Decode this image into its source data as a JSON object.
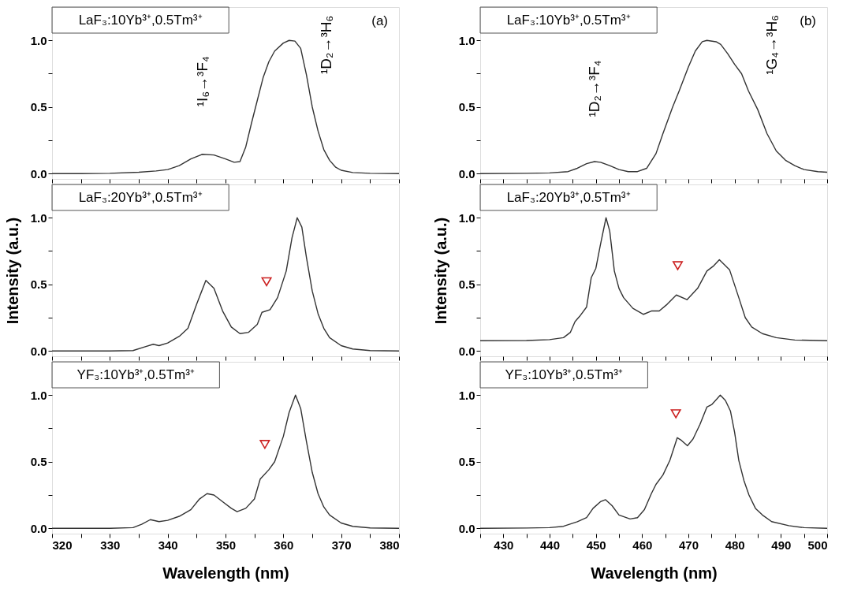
{
  "chart_data": [
    {
      "type": "line",
      "title": "LaF₃:10Yb³⁺,0.5Tm³⁺",
      "tick_labels": "y",
      "xlim": [
        320,
        380
      ],
      "ylim": [
        -0.04,
        1.25
      ],
      "xticks": [
        320,
        {
          "value": 325,
          "label": null
        },
        330,
        {
          "value": 335,
          "label": null
        },
        340,
        {
          "value": 345,
          "label": null
        },
        350,
        {
          "value": 355,
          "label": null
        },
        360,
        {
          "value": 365,
          "label": null
        },
        370,
        {
          "value": 375,
          "label": null
        },
        380
      ],
      "yticks": [
        {
          "value": 0,
          "label": "0.0"
        },
        {
          "value": 0.25,
          "label": null
        },
        {
          "value": 0.5,
          "label": "0.5"
        },
        {
          "value": 0.75,
          "label": null
        },
        {
          "value": 1,
          "label": "1.0"
        }
      ],
      "annotations": [
        "(a)",
        "¹I₆→³F₄",
        "¹D₂→³H₆"
      ],
      "series": [
        {
          "color": "#333333",
          "x": [
            320,
            325,
            330,
            335,
            338,
            340,
            342,
            344,
            346,
            348,
            350,
            351.5,
            352.5,
            353.5,
            354.5,
            355.5,
            356.5,
            357.5,
            358.5,
            360,
            361,
            362,
            363,
            364,
            365,
            366,
            367,
            368,
            369,
            370,
            372,
            375,
            380
          ],
          "values": [
            0,
            0,
            0.002,
            0.01,
            0.02,
            0.03,
            0.06,
            0.11,
            0.145,
            0.14,
            0.11,
            0.085,
            0.09,
            0.2,
            0.38,
            0.55,
            0.72,
            0.84,
            0.92,
            0.98,
            1.0,
            0.995,
            0.94,
            0.74,
            0.5,
            0.32,
            0.18,
            0.1,
            0.05,
            0.025,
            0.008,
            0.002,
            0
          ]
        }
      ]
    },
    {
      "type": "line",
      "title": "LaF₃:10Yb³⁺,0.5Tm³⁺",
      "tick_labels": "y",
      "xlim": [
        425,
        500
      ],
      "ylim": [
        -0.04,
        1.25
      ],
      "xticks": [
        {
          "value": 425,
          "label": null
        },
        430,
        {
          "value": 435,
          "label": null
        },
        440,
        {
          "value": 445,
          "label": null
        },
        450,
        {
          "value": 455,
          "label": null
        },
        460,
        {
          "value": 465,
          "label": null
        },
        470,
        {
          "value": 475,
          "label": null
        },
        480,
        {
          "value": 485,
          "label": null
        },
        490,
        {
          "value": 495,
          "label": null
        },
        500
      ],
      "yticks": [
        {
          "value": 0,
          "label": "0.0"
        },
        {
          "value": 0.25,
          "label": null
        },
        {
          "value": 0.5,
          "label": "0.5"
        },
        {
          "value": 0.75,
          "label": null
        },
        {
          "value": 1,
          "label": "1.0"
        }
      ],
      "annotations": [
        "(b)",
        "¹D₂→³F₄",
        "¹G₄→³H₆"
      ],
      "series": [
        {
          "color": "#333333",
          "x": [
            425,
            435,
            440,
            444,
            446,
            448,
            449.7,
            451,
            453,
            455,
            457,
            459,
            461,
            463,
            464.5,
            466.6,
            468,
            470,
            471.5,
            473,
            474,
            476,
            477,
            478.5,
            480,
            481.5,
            483,
            485,
            487,
            489,
            491,
            493,
            495,
            498,
            500
          ],
          "values": [
            0,
            0.002,
            0.005,
            0.015,
            0.04,
            0.075,
            0.09,
            0.085,
            0.06,
            0.03,
            0.015,
            0.015,
            0.04,
            0.15,
            0.3,
            0.5,
            0.62,
            0.8,
            0.92,
            0.99,
            1.0,
            0.99,
            0.97,
            0.9,
            0.82,
            0.75,
            0.62,
            0.48,
            0.3,
            0.17,
            0.1,
            0.06,
            0.03,
            0.015,
            0.01
          ]
        }
      ]
    },
    {
      "type": "line",
      "title": "LaF₃:20Yb³⁺,0.5Tm³⁺",
      "tick_labels": "y",
      "ylabel": "Intensity (a.u.)",
      "xlim": [
        320,
        380
      ],
      "ylim": [
        -0.04,
        1.25
      ],
      "xticks": [
        320,
        {
          "value": 325,
          "label": null
        },
        330,
        {
          "value": 335,
          "label": null
        },
        340,
        {
          "value": 345,
          "label": null
        },
        350,
        {
          "value": 355,
          "label": null
        },
        360,
        {
          "value": 365,
          "label": null
        },
        370,
        {
          "value": 375,
          "label": null
        },
        380
      ],
      "yticks": [
        {
          "value": 0,
          "label": "0.0"
        },
        {
          "value": 0.25,
          "label": null
        },
        {
          "value": 0.5,
          "label": "0.5"
        },
        {
          "value": 0.75,
          "label": null
        },
        {
          "value": 1,
          "label": "1.0"
        }
      ],
      "series": [
        {
          "color": "#333333",
          "x": [
            320,
            330,
            334,
            336,
            337.5,
            338.5,
            340,
            342,
            343.5,
            345,
            346.6,
            348,
            349.5,
            351,
            352.5,
            354,
            355.5,
            356.3,
            357.7,
            359,
            360.5,
            361.5,
            362.4,
            363.2,
            364,
            365,
            366,
            367,
            368,
            370,
            372,
            375,
            380
          ],
          "values": [
            0,
            0,
            0.003,
            0.03,
            0.05,
            0.04,
            0.06,
            0.11,
            0.17,
            0.35,
            0.53,
            0.47,
            0.3,
            0.18,
            0.13,
            0.14,
            0.2,
            0.29,
            0.31,
            0.4,
            0.6,
            0.85,
            1.0,
            0.93,
            0.7,
            0.45,
            0.28,
            0.17,
            0.1,
            0.04,
            0.015,
            0.003,
            0
          ]
        },
        {
          "type": "scatter",
          "marker": "triangle",
          "color": "#cc2222",
          "x": [
            357.1
          ],
          "values": [
            0.52
          ]
        }
      ]
    },
    {
      "type": "line",
      "title": "LaF₃:20Yb³⁺,0.5Tm³⁺",
      "tick_labels": "y",
      "ylabel": "Intensity (a.u.)",
      "xlim": [
        425,
        500
      ],
      "ylim": [
        -0.04,
        1.25
      ],
      "xticks": [
        {
          "value": 425,
          "label": null
        },
        430,
        {
          "value": 435,
          "label": null
        },
        440,
        {
          "value": 445,
          "label": null
        },
        450,
        {
          "value": 455,
          "label": null
        },
        460,
        {
          "value": 465,
          "label": null
        },
        470,
        {
          "value": 475,
          "label": null
        },
        480,
        {
          "value": 485,
          "label": null
        },
        490,
        {
          "value": 495,
          "label": null
        },
        500
      ],
      "yticks": [
        {
          "value": 0,
          "label": "0.0"
        },
        {
          "value": 0.25,
          "label": null
        },
        {
          "value": 0.5,
          "label": "0.5"
        },
        {
          "value": 0.75,
          "label": null
        },
        {
          "value": 1,
          "label": "1.0"
        }
      ],
      "series": [
        {
          "color": "#333333",
          "x": [
            425,
            435,
            440,
            443,
            444.5,
            445.5,
            446.5,
            448,
            449,
            450,
            451,
            452.2,
            453,
            454,
            455,
            456,
            458,
            460.3,
            462,
            463.7,
            465.4,
            467.4,
            469.7,
            472,
            474,
            475.5,
            476.7,
            478.9,
            480.9,
            482.3,
            483.7,
            486,
            489,
            493,
            500
          ],
          "values": [
            0.077,
            0.078,
            0.085,
            0.1,
            0.14,
            0.22,
            0.26,
            0.33,
            0.55,
            0.62,
            0.8,
            1.0,
            0.9,
            0.6,
            0.47,
            0.4,
            0.32,
            0.275,
            0.3,
            0.3,
            0.35,
            0.42,
            0.385,
            0.47,
            0.6,
            0.64,
            0.685,
            0.61,
            0.4,
            0.25,
            0.18,
            0.13,
            0.1,
            0.082,
            0.077
          ]
        },
        {
          "type": "scatter",
          "marker": "triangle",
          "color": "#cc2222",
          "x": [
            467.7
          ],
          "values": [
            0.64
          ]
        }
      ]
    },
    {
      "type": "line",
      "title": "YF₃:10Yb³⁺,0.5Tm³⁺",
      "xlabel": "Wavelength (nm)",
      "xlim": [
        320,
        380
      ],
      "ylim": [
        -0.04,
        1.25
      ],
      "xticks": [
        320,
        {
          "value": 325,
          "label": null
        },
        330,
        {
          "value": 335,
          "label": null
        },
        340,
        {
          "value": 345,
          "label": null
        },
        350,
        {
          "value": 355,
          "label": null
        },
        360,
        {
          "value": 365,
          "label": null
        },
        370,
        {
          "value": 375,
          "label": null
        },
        380
      ],
      "yticks": [
        {
          "value": 0,
          "label": "0.0"
        },
        {
          "value": 0.25,
          "label": null
        },
        {
          "value": 0.5,
          "label": "0.5"
        },
        {
          "value": 0.75,
          "label": null
        },
        {
          "value": 1,
          "label": "1.0"
        }
      ],
      "series": [
        {
          "color": "#333333",
          "x": [
            320,
            330,
            334,
            335.5,
            337,
            338.5,
            340,
            342,
            344,
            345.5,
            346.8,
            348,
            349.5,
            351,
            352,
            353.5,
            355,
            356,
            357.5,
            358.5,
            360,
            361,
            362.1,
            363,
            364,
            365,
            366,
            367,
            368,
            370,
            372,
            375,
            380
          ],
          "values": [
            0,
            0,
            0.005,
            0.03,
            0.065,
            0.05,
            0.06,
            0.09,
            0.14,
            0.22,
            0.26,
            0.25,
            0.2,
            0.15,
            0.125,
            0.15,
            0.22,
            0.37,
            0.44,
            0.5,
            0.69,
            0.87,
            1.0,
            0.9,
            0.65,
            0.42,
            0.26,
            0.16,
            0.1,
            0.04,
            0.015,
            0.003,
            0
          ]
        },
        {
          "type": "scatter",
          "marker": "triangle",
          "color": "#cc2222",
          "x": [
            356.8
          ],
          "values": [
            0.63
          ]
        }
      ]
    },
    {
      "type": "line",
      "title": "YF₃:10Yb³⁺,0.5Tm³⁺",
      "xlabel": "Wavelength (nm)",
      "xlim": [
        425,
        500
      ],
      "ylim": [
        -0.04,
        1.25
      ],
      "xticks": [
        {
          "value": 425,
          "label": null
        },
        430,
        {
          "value": 435,
          "label": null
        },
        440,
        {
          "value": 445,
          "label": null
        },
        450,
        {
          "value": 455,
          "label": null
        },
        460,
        {
          "value": 465,
          "label": null
        },
        470,
        {
          "value": 475,
          "label": null
        },
        480,
        {
          "value": 485,
          "label": null
        },
        490,
        {
          "value": 495,
          "label": null
        },
        500
      ],
      "yticks": [
        {
          "value": 0,
          "label": "0.0"
        },
        {
          "value": 0.25,
          "label": null
        },
        {
          "value": 0.5,
          "label": "0.5"
        },
        {
          "value": 0.75,
          "label": null
        },
        {
          "value": 1,
          "label": "1.0"
        }
      ],
      "series": [
        {
          "color": "#333333",
          "x": [
            425,
            435,
            440,
            443,
            446,
            448,
            449.4,
            451,
            452.1,
            453.5,
            455,
            457.4,
            459,
            460.5,
            462,
            463,
            464.5,
            466,
            467.6,
            468.5,
            469.8,
            471,
            472.5,
            474,
            475.1,
            476.9,
            478,
            479.1,
            480,
            480.9,
            482,
            483.1,
            484.5,
            486,
            488,
            491.7,
            495,
            500
          ],
          "values": [
            0,
            0.002,
            0.005,
            0.015,
            0.05,
            0.08,
            0.15,
            0.2,
            0.215,
            0.17,
            0.1,
            0.07,
            0.08,
            0.14,
            0.26,
            0.33,
            0.4,
            0.51,
            0.68,
            0.66,
            0.62,
            0.67,
            0.78,
            0.91,
            0.93,
            1.0,
            0.96,
            0.88,
            0.72,
            0.51,
            0.36,
            0.25,
            0.15,
            0.1,
            0.05,
            0.02,
            0.005,
            0
          ]
        },
        {
          "type": "scatter",
          "marker": "triangle",
          "color": "#cc2222",
          "x": [
            467.3
          ],
          "values": [
            0.86
          ]
        }
      ]
    }
  ]
}
